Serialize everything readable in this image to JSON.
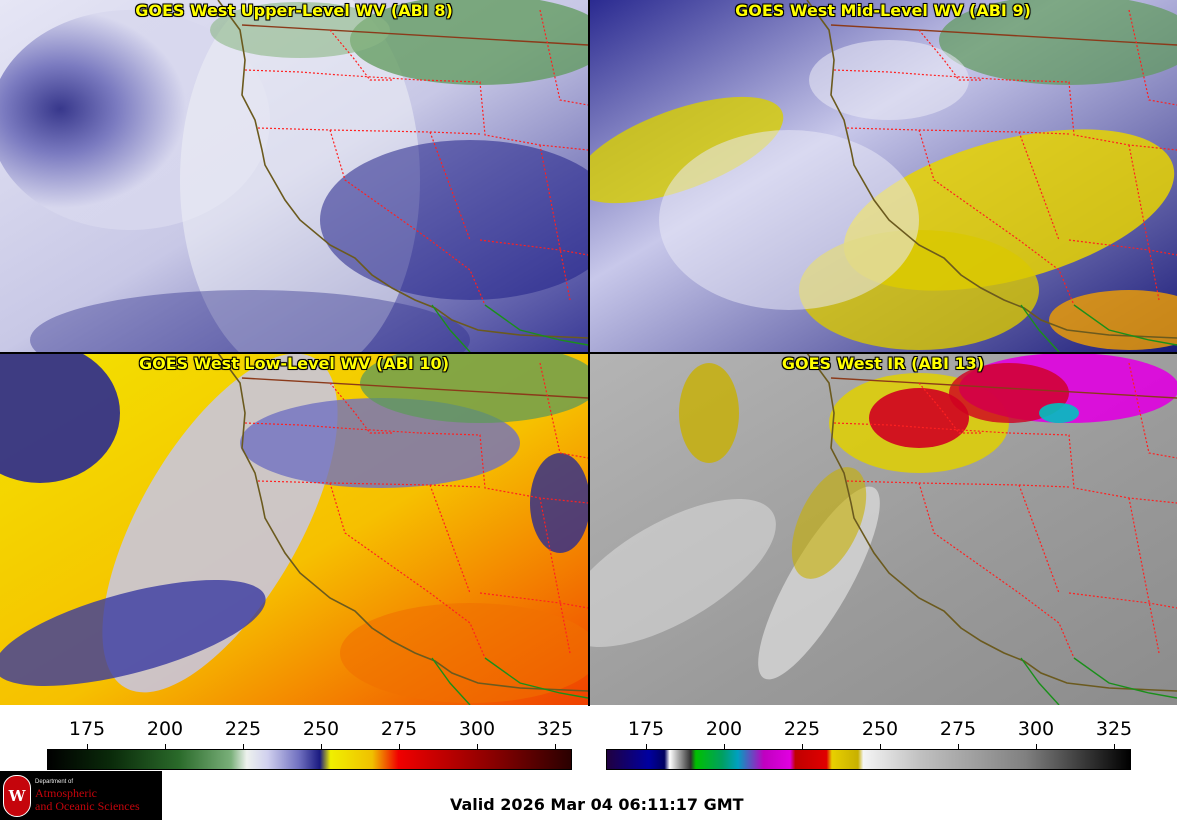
{
  "panels": [
    {
      "title": "GOES West Upper-Level WV (ABI 8)",
      "product": "upper-level-water-vapor"
    },
    {
      "title": "GOES West Mid-Level WV (ABI 9)",
      "product": "mid-level-water-vapor"
    },
    {
      "title": "GOES West Low-Level WV (ABI 10)",
      "product": "low-level-water-vapor"
    },
    {
      "title": "GOES West IR (ABI 13)",
      "product": "infrared"
    }
  ],
  "colorbars": {
    "wv": {
      "ticks": [
        "175",
        "200",
        "225",
        "250",
        "275",
        "300",
        "325"
      ]
    },
    "ir": {
      "ticks": [
        "175",
        "200",
        "225",
        "250",
        "275",
        "300",
        "325"
      ]
    }
  },
  "logo": {
    "line1": "Department of",
    "line2": "Atmospheric",
    "line3": "and Oceanic Sciences",
    "seal_letter": "W",
    "seal_color": "#c5050c"
  },
  "valid_time": "Valid 2026 Mar 04 06:11:17 GMT",
  "colors": {
    "title_text": "#ffff00",
    "state_border": "#ff2020",
    "coast": "#6b5a1e",
    "mexico_border": "#1a8f1a"
  }
}
